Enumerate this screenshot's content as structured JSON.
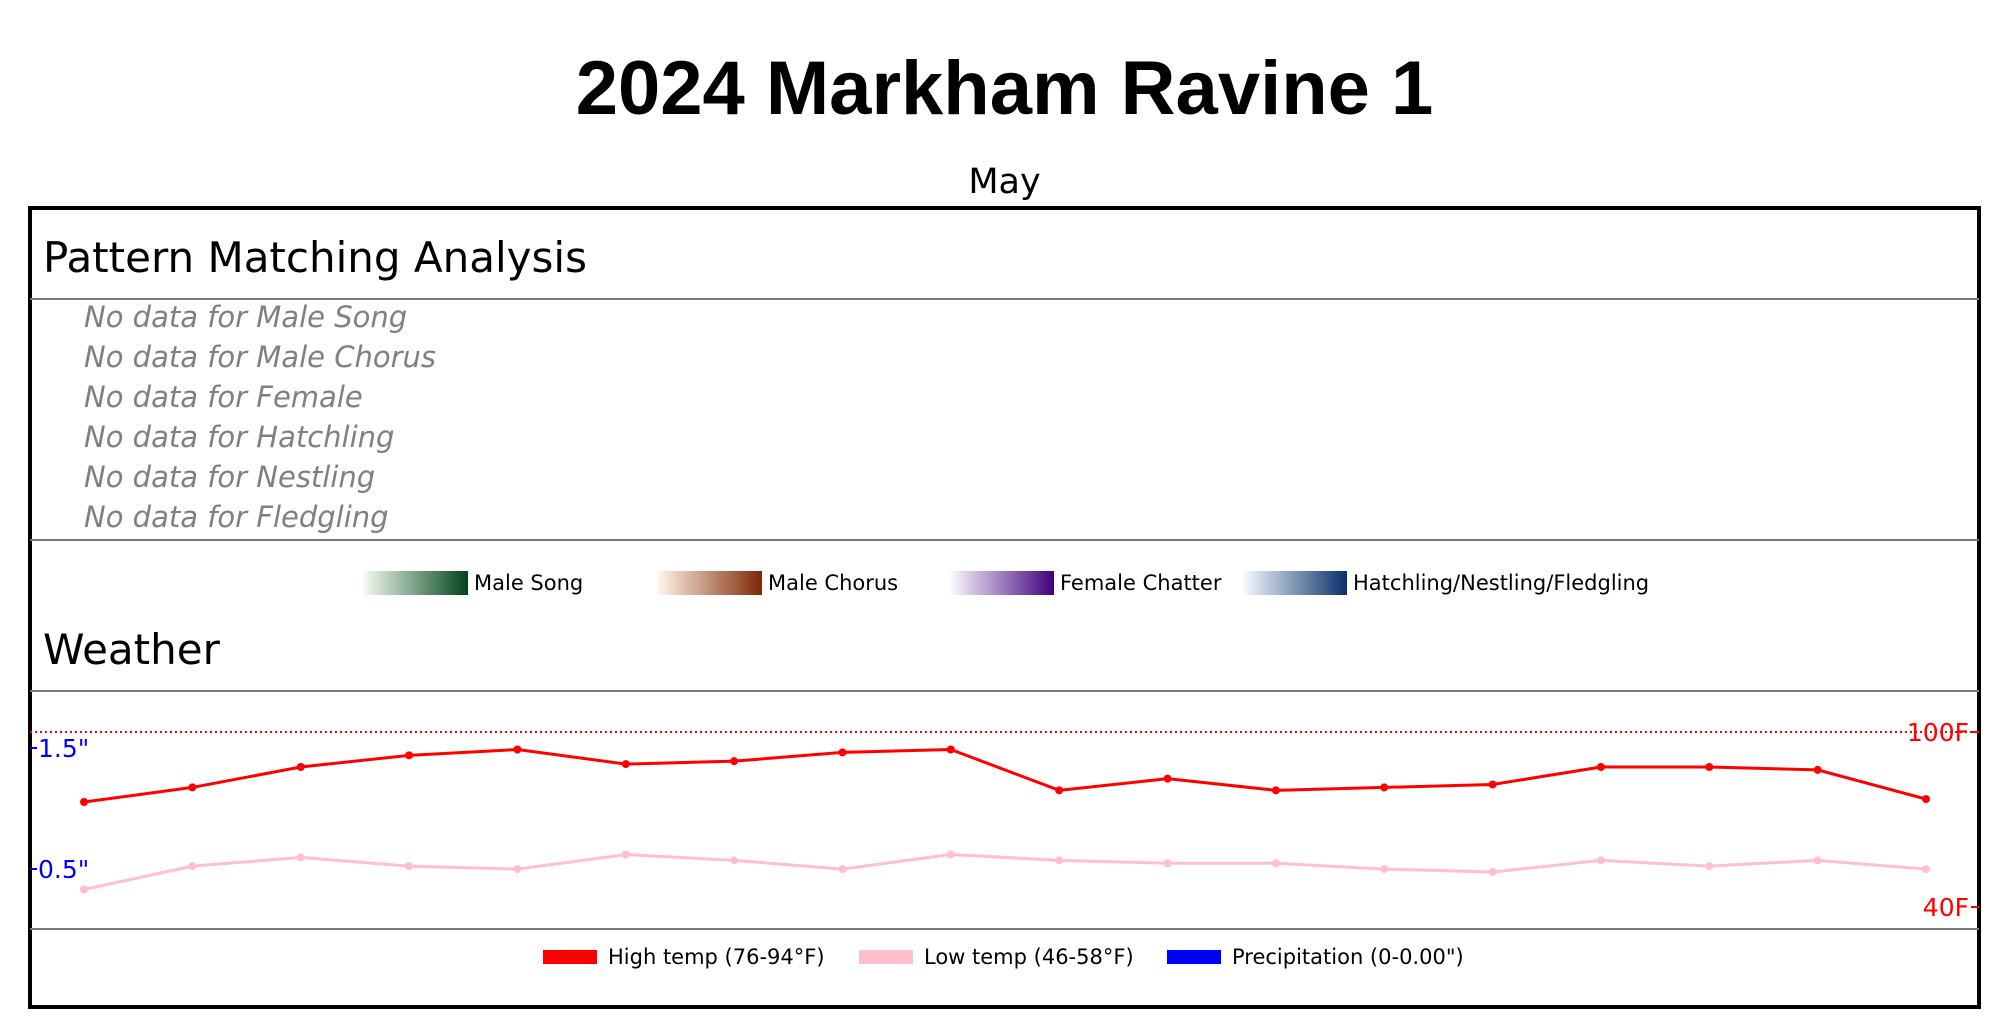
{
  "title": "2024 Markham Ravine 1",
  "subtitle": "May",
  "pattern": {
    "heading": "Pattern Matching Analysis",
    "no_data": [
      "No data for Male Song",
      "No data for Male Chorus",
      "No data for Female",
      "No data for Hatchling",
      "No data for Nestling",
      "No data for Fledgling"
    ]
  },
  "legend": {
    "items": [
      {
        "label": "Male Song",
        "from": "#f2faef",
        "to": "#00441b"
      },
      {
        "label": "Male Chorus",
        "from": "#fff5eb",
        "to": "#7f2704"
      },
      {
        "label": "Female Chatter",
        "from": "#fcfbfd",
        "to": "#3f007d"
      },
      {
        "label": "Hatchling/Nestling/Fledgling",
        "from": "#f7fbff",
        "to": "#08306b"
      }
    ]
  },
  "weather": {
    "heading": "Weather",
    "left_ticks": [
      "1.5\"",
      "0.5\""
    ],
    "right_ticks": [
      "100F",
      "40F"
    ],
    "legend": [
      {
        "label": "High temp (76-94°F)",
        "color": "#ff0000"
      },
      {
        "label": "Low temp (46-58°F)",
        "color": "#ffc0cb"
      },
      {
        "label": "Precipitation (0-0.00\")",
        "color": "#0000ff"
      }
    ]
  },
  "chart_data": {
    "type": "line",
    "title": "Weather",
    "y_right_range": [
      40,
      100
    ],
    "y_left_ticks": [
      1.5,
      0.5
    ],
    "reference_line": 100,
    "series": [
      {
        "name": "High temp (76-94°F)",
        "color": "#ff0000",
        "values": [
          76,
          81,
          88,
          92,
          94,
          89,
          90,
          93,
          94,
          80,
          84,
          80,
          81,
          82,
          88,
          88,
          87,
          77
        ]
      },
      {
        "name": "Low temp (46-58°F)",
        "color": "#ffc0cb",
        "values": [
          46,
          54,
          57,
          54,
          53,
          58,
          56,
          53,
          58,
          56,
          55,
          55,
          53,
          52,
          56,
          54,
          56,
          53
        ]
      },
      {
        "name": "Precipitation (0-0.00\")",
        "color": "#0000ff",
        "values": []
      }
    ]
  }
}
